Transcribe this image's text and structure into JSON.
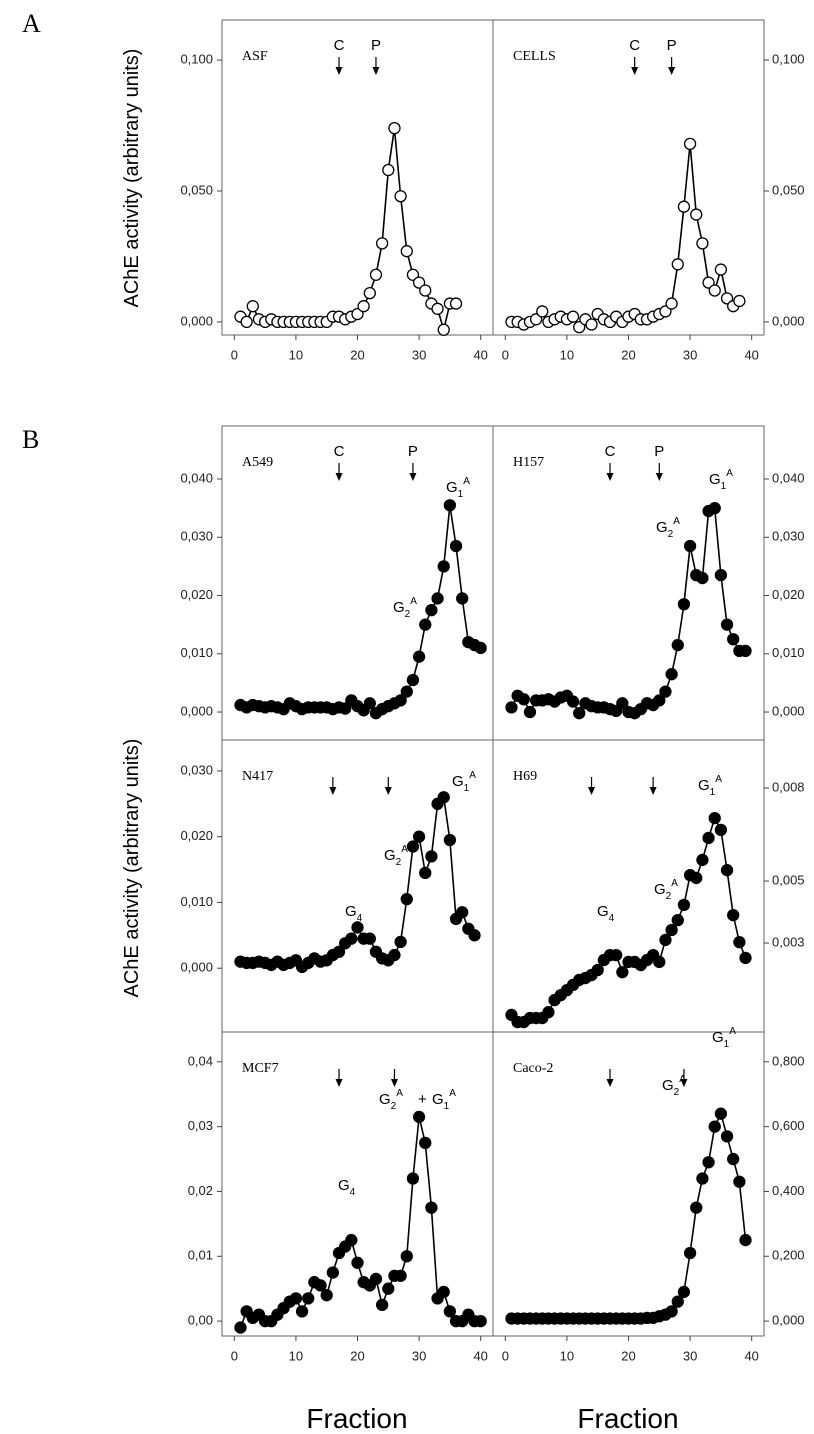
{
  "figure": {
    "panel_labels": [
      "A",
      "B"
    ],
    "ylabel": "AChE activity (arbitrary units)",
    "xlabel": "Fraction"
  },
  "chart_data": [
    {
      "type": "line",
      "title": "ASF",
      "marker": "open",
      "color": "#000000",
      "x": [
        1,
        2,
        3,
        4,
        5,
        6,
        7,
        8,
        9,
        10,
        11,
        12,
        13,
        14,
        15,
        16,
        17,
        18,
        19,
        20,
        21,
        22,
        23,
        24,
        25,
        26,
        27,
        28,
        29,
        30,
        31,
        32,
        33,
        34,
        35,
        36
      ],
      "values": [
        0.002,
        0.0,
        0.006,
        0.001,
        0.0,
        0.001,
        0.0,
        0.0,
        0.0,
        0.0,
        0.0,
        0.0,
        0.0,
        0.0,
        0.0,
        0.002,
        0.002,
        0.001,
        0.002,
        0.003,
        0.006,
        0.011,
        0.018,
        0.03,
        0.058,
        0.074,
        0.048,
        0.027,
        0.018,
        0.015,
        0.012,
        0.007,
        0.005,
        -0.003,
        0.007,
        0.007
      ],
      "xlim": [
        -2,
        42
      ],
      "xticks": [
        0,
        10,
        20,
        30,
        40
      ],
      "ylim": [
        -0.005,
        0.1153
      ],
      "yticks": [
        {
          "value": 0,
          "label": "0,000"
        },
        {
          "value": 0.05,
          "label": "0,050"
        },
        {
          "value": 0.1,
          "label": "0,100"
        }
      ],
      "arrows": [
        17,
        23
      ],
      "arrow_labels": [
        "C",
        "P"
      ],
      "annotations": []
    },
    {
      "type": "line",
      "title": "CELLS",
      "marker": "open",
      "color": "#000000",
      "x": [
        1,
        2,
        3,
        4,
        5,
        6,
        7,
        8,
        9,
        10,
        11,
        12,
        13,
        14,
        15,
        16,
        17,
        18,
        19,
        20,
        21,
        22,
        23,
        24,
        25,
        26,
        27,
        28,
        29,
        30,
        31,
        32,
        33,
        34,
        35,
        36,
        37,
        38
      ],
      "values": [
        0.0,
        0.0,
        -0.001,
        0.0,
        0.001,
        0.004,
        0.0,
        0.001,
        0.002,
        0.001,
        0.002,
        -0.002,
        0.001,
        -0.001,
        0.003,
        0.001,
        0.0,
        0.002,
        0.0,
        0.002,
        0.003,
        0.001,
        0.001,
        0.002,
        0.003,
        0.004,
        0.007,
        0.022,
        0.044,
        0.068,
        0.041,
        0.03,
        0.015,
        0.012,
        0.02,
        0.009,
        0.006,
        0.008
      ],
      "xlim": [
        -2,
        42
      ],
      "xticks": [
        0,
        10,
        20,
        30,
        40
      ],
      "ylim": [
        -0.005,
        0.1153
      ],
      "yticks": [
        {
          "value": 0,
          "label": "0,000"
        },
        {
          "value": 0.05,
          "label": "0,050"
        },
        {
          "value": 0.1,
          "label": "0,100"
        }
      ],
      "arrows": [
        21,
        27
      ],
      "arrow_labels": [
        "C",
        "P"
      ],
      "annotations": []
    },
    {
      "type": "line",
      "title": "A549",
      "marker": "filled",
      "color": "#000000",
      "x": [
        1,
        2,
        3,
        4,
        5,
        6,
        7,
        8,
        9,
        10,
        11,
        12,
        13,
        14,
        15,
        16,
        17,
        18,
        19,
        20,
        21,
        22,
        23,
        24,
        25,
        26,
        27,
        28,
        29,
        30,
        31,
        32,
        33,
        34,
        35,
        36,
        37,
        38,
        39,
        40
      ],
      "values": [
        0.0012,
        0.0008,
        0.0012,
        0.001,
        0.0008,
        0.001,
        0.0008,
        0.0005,
        0.0015,
        0.001,
        0.0005,
        0.0008,
        0.0008,
        0.0008,
        0.0008,
        0.0005,
        0.0008,
        0.0006,
        0.002,
        0.001,
        0.0003,
        0.0015,
        -0.0002,
        0.0005,
        0.001,
        0.0015,
        0.002,
        0.0035,
        0.0055,
        0.0095,
        0.015,
        0.0175,
        0.0195,
        0.025,
        0.0355,
        0.0285,
        0.0195,
        0.012,
        0.0115,
        0.011
      ],
      "xlim": [
        -2,
        42
      ],
      "ylim": [
        -0.0048,
        0.0491
      ],
      "yticks": [
        {
          "value": 0,
          "label": "0,000"
        },
        {
          "value": 0.01,
          "label": "0,010"
        },
        {
          "value": 0.02,
          "label": "0,020"
        },
        {
          "value": 0.03,
          "label": "0,030"
        },
        {
          "value": 0.04,
          "label": "0,040"
        }
      ],
      "arrows": [
        17,
        29
      ],
      "arrow_labels": [
        "C",
        "P"
      ],
      "annotations": [
        {
          "base": "G",
          "sub": "1",
          "sup": "A"
        },
        {
          "base": "G",
          "sub": "2",
          "sup": "A"
        }
      ]
    },
    {
      "type": "line",
      "title": "H157",
      "marker": "filled",
      "color": "#000000",
      "x": [
        1,
        2,
        3,
        4,
        5,
        6,
        7,
        8,
        9,
        10,
        11,
        12,
        13,
        14,
        15,
        16,
        17,
        18,
        19,
        20,
        21,
        22,
        23,
        24,
        25,
        26,
        27,
        28,
        29,
        30,
        31,
        32,
        33,
        34,
        35,
        36,
        37,
        38,
        39
      ],
      "values": [
        0.0008,
        0.0028,
        0.0022,
        0.0,
        0.002,
        0.002,
        0.0022,
        0.0018,
        0.0025,
        0.0028,
        0.0018,
        -0.0002,
        0.0015,
        0.001,
        0.0008,
        0.0008,
        0.0005,
        0.0002,
        0.0015,
        0.0,
        -0.0002,
        0.0005,
        0.0015,
        0.0012,
        0.002,
        0.0035,
        0.0065,
        0.0115,
        0.0185,
        0.0285,
        0.0235,
        0.023,
        0.0345,
        0.035,
        0.0235,
        0.015,
        0.0125,
        0.0105,
        0.0105
      ],
      "xlim": [
        -2,
        42
      ],
      "ylim": [
        -0.0048,
        0.0491
      ],
      "yticks": [
        {
          "value": 0,
          "label": "0,000"
        },
        {
          "value": 0.01,
          "label": "0,010"
        },
        {
          "value": 0.02,
          "label": "0,020"
        },
        {
          "value": 0.03,
          "label": "0,030"
        },
        {
          "value": 0.04,
          "label": "0,040"
        }
      ],
      "arrows": [
        17,
        25
      ],
      "arrow_labels": [
        "C",
        "P"
      ],
      "annotations": [
        {
          "base": "G",
          "sub": "2",
          "sup": "A"
        },
        {
          "base": "G",
          "sub": "1",
          "sup": "A"
        }
      ]
    },
    {
      "type": "line",
      "title": "N417",
      "marker": "filled",
      "color": "#000000",
      "x": [
        1,
        2,
        3,
        4,
        5,
        6,
        7,
        8,
        9,
        10,
        11,
        12,
        13,
        14,
        15,
        16,
        17,
        18,
        19,
        20,
        21,
        22,
        23,
        24,
        25,
        26,
        27,
        28,
        29,
        30,
        31,
        32,
        33,
        34,
        35,
        36,
        37,
        38,
        39
      ],
      "values": [
        0.001,
        0.0008,
        0.0008,
        0.001,
        0.0008,
        0.0005,
        0.001,
        0.0005,
        0.0008,
        0.0012,
        0.0002,
        0.0008,
        0.0015,
        0.001,
        0.0012,
        0.002,
        0.0025,
        0.0038,
        0.0045,
        0.0062,
        0.0045,
        0.0045,
        0.0025,
        0.0015,
        0.0012,
        0.002,
        0.004,
        0.0105,
        0.0185,
        0.02,
        0.0145,
        0.017,
        0.025,
        0.026,
        0.0195,
        0.0075,
        0.0085,
        0.006,
        0.005
      ],
      "xlim": [
        -2,
        42
      ],
      "ylim": [
        -0.0097,
        0.0347
      ],
      "yticks": [
        {
          "value": 0,
          "label": "0,000"
        },
        {
          "value": 0.01,
          "label": "0,010"
        },
        {
          "value": 0.02,
          "label": "0,020"
        },
        {
          "value": 0.03,
          "label": "0,030"
        }
      ],
      "arrows": [
        16,
        25
      ],
      "annotations": [
        {
          "base": "G",
          "sub": "4"
        },
        {
          "base": "G",
          "sub": "2",
          "sup": "A"
        },
        {
          "base": "G",
          "sub": "1",
          "sup": "A"
        }
      ]
    },
    {
      "type": "line",
      "title": "H69",
      "marker": "filled",
      "color": "#000000",
      "x": [
        1,
        2,
        3,
        4,
        5,
        6,
        7,
        8,
        9,
        10,
        11,
        12,
        13,
        14,
        15,
        16,
        17,
        18,
        19,
        20,
        21,
        22,
        23,
        24,
        25,
        26,
        27,
        28,
        29,
        30,
        31,
        32,
        33,
        34,
        35,
        36,
        37,
        38,
        39
      ],
      "values": [
        0.00068,
        0.00045,
        0.00045,
        0.00058,
        0.00058,
        0.00058,
        0.00077,
        0.00116,
        0.00132,
        0.00148,
        0.00165,
        0.00181,
        0.00187,
        0.00197,
        0.00213,
        0.00245,
        0.00261,
        0.00261,
        0.00206,
        0.00239,
        0.00239,
        0.00229,
        0.00245,
        0.00261,
        0.00239,
        0.0031,
        0.00342,
        0.00374,
        0.00423,
        0.00519,
        0.0051,
        0.00568,
        0.00639,
        0.00703,
        0.00665,
        0.00535,
        0.0039,
        0.00303,
        0.00252
      ],
      "xlim": [
        -2,
        42
      ],
      "ylim": [
        0.00013,
        0.00955
      ],
      "yticks": [
        {
          "value": 0.003,
          "label": "0,003"
        },
        {
          "value": 0.005,
          "label": "0,005"
        },
        {
          "value": 0.008,
          "label": "0,008"
        }
      ],
      "arrows": [
        14,
        24
      ],
      "annotations": [
        {
          "base": "G",
          "sub": "4"
        },
        {
          "base": "G",
          "sub": "2",
          "sup": "A"
        },
        {
          "base": "G",
          "sub": "1",
          "sup": "A"
        }
      ]
    },
    {
      "type": "line",
      "title": "MCF7",
      "marker": "filled",
      "color": "#000000",
      "x": [
        1,
        2,
        3,
        4,
        5,
        6,
        7,
        8,
        9,
        10,
        11,
        12,
        13,
        14,
        15,
        16,
        17,
        18,
        19,
        20,
        21,
        22,
        23,
        24,
        25,
        26,
        27,
        28,
        29,
        30,
        31,
        32,
        33,
        34,
        35,
        36,
        37,
        38,
        39,
        40
      ],
      "values": [
        -0.001,
        0.0015,
        0.0005,
        0.001,
        0.0,
        0.0,
        0.001,
        0.002,
        0.003,
        0.0035,
        0.0015,
        0.0035,
        0.006,
        0.0055,
        0.004,
        0.0075,
        0.0105,
        0.0115,
        0.0125,
        0.009,
        0.006,
        0.0055,
        0.0065,
        0.0025,
        0.005,
        0.007,
        0.007,
        0.01,
        0.022,
        0.0315,
        0.0275,
        0.0175,
        0.0035,
        0.0045,
        0.0015,
        0.0,
        0.0,
        0.001,
        0.0,
        0.0
      ],
      "xlim": [
        -2,
        42
      ],
      "xticks": [
        0,
        10,
        20,
        30,
        40
      ],
      "ylim": [
        -0.0023,
        0.0446
      ],
      "yticks": [
        {
          "value": 0,
          "label": "0,00"
        },
        {
          "value": 0.01,
          "label": "0,01"
        },
        {
          "value": 0.02,
          "label": "0,02"
        },
        {
          "value": 0.03,
          "label": "0,03"
        },
        {
          "value": 0.04,
          "label": "0,04"
        }
      ],
      "arrows": [
        17,
        26
      ],
      "annotations": [
        {
          "base": "G",
          "sub": "4"
        },
        {
          "base": "G",
          "sub": "2",
          "sup": "A"
        },
        {
          "text": "+"
        },
        {
          "base": "G",
          "sub": "1",
          "sup": "A"
        }
      ]
    },
    {
      "type": "line",
      "title": "Caco-2",
      "marker": "filled",
      "color": "#000000",
      "x": [
        1,
        2,
        3,
        4,
        5,
        6,
        7,
        8,
        9,
        10,
        11,
        12,
        13,
        14,
        15,
        16,
        17,
        18,
        19,
        20,
        21,
        22,
        23,
        24,
        25,
        26,
        27,
        28,
        29,
        30,
        31,
        32,
        33,
        34,
        35,
        36,
        37,
        38,
        39
      ],
      "values": [
        0.008,
        0.008,
        0.008,
        0.008,
        0.008,
        0.008,
        0.008,
        0.008,
        0.008,
        0.008,
        0.008,
        0.008,
        0.008,
        0.008,
        0.008,
        0.008,
        0.008,
        0.008,
        0.008,
        0.008,
        0.008,
        0.008,
        0.01,
        0.01,
        0.015,
        0.02,
        0.03,
        0.06,
        0.09,
        0.21,
        0.35,
        0.44,
        0.49,
        0.6,
        0.64,
        0.57,
        0.5,
        0.43,
        0.25
      ],
      "xlim": [
        -2,
        42
      ],
      "xticks": [
        0,
        10,
        20,
        30,
        40
      ],
      "ylim": [
        -0.046,
        0.892
      ],
      "yticks": [
        {
          "value": 0,
          "label": "0,000"
        },
        {
          "value": 0.2,
          "label": "0,200"
        },
        {
          "value": 0.4,
          "label": "0,400"
        },
        {
          "value": 0.6,
          "label": "0,600"
        },
        {
          "value": 0.8,
          "label": "0,800"
        }
      ],
      "arrows": [
        17,
        29
      ],
      "annotations": [
        {
          "base": "G",
          "sub": "2",
          "sup": "A"
        },
        {
          "base": "G",
          "sub": "1",
          "sup": "A"
        }
      ]
    }
  ]
}
